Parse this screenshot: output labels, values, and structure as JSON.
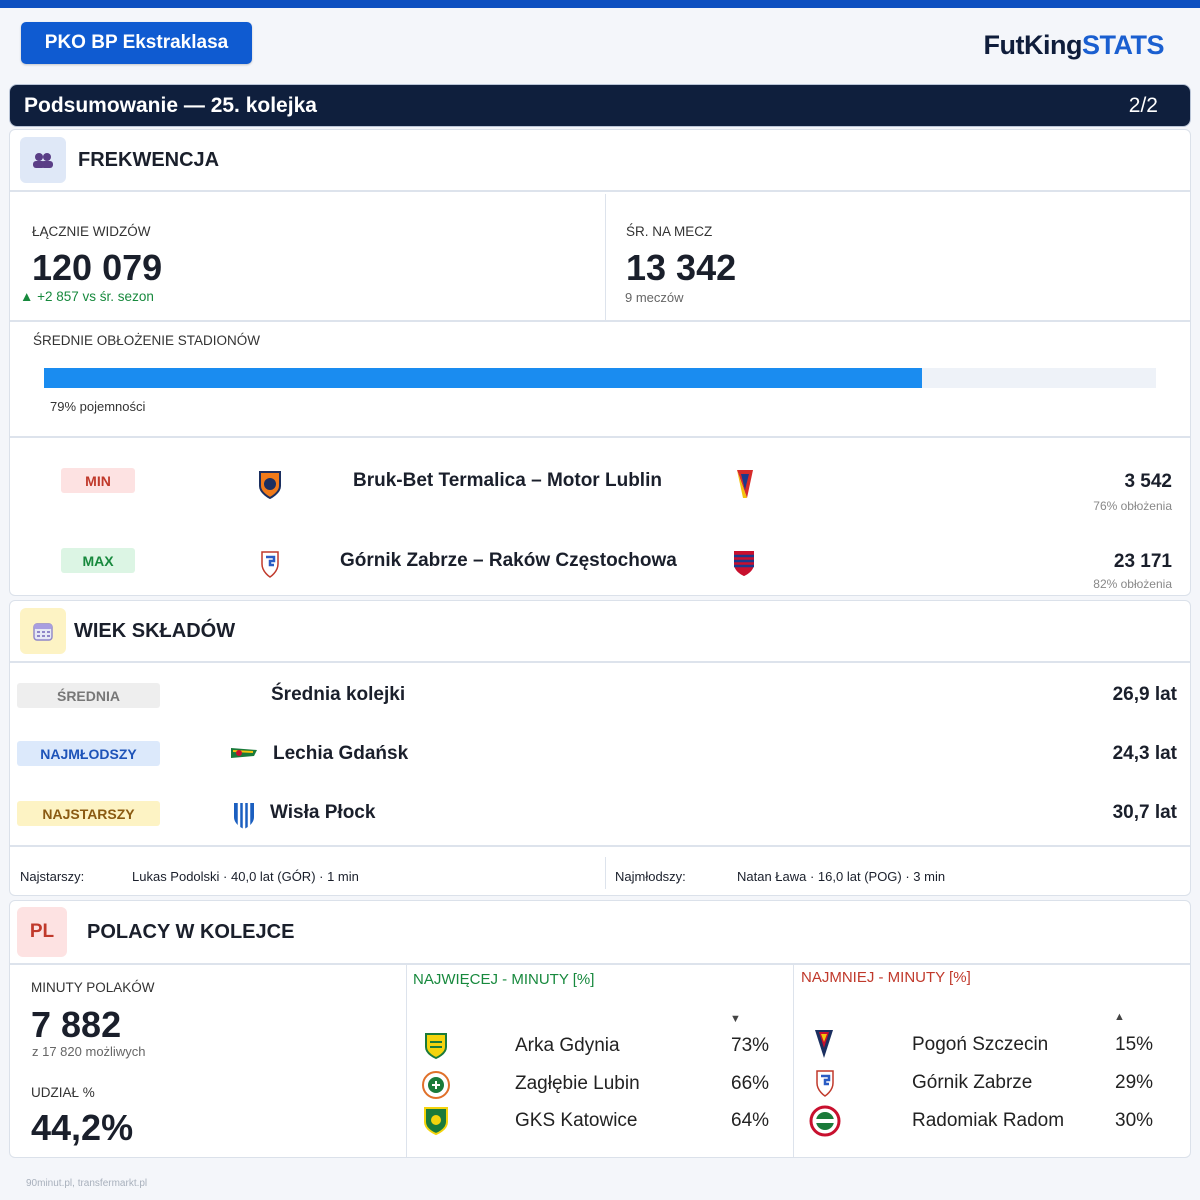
{
  "league": "PKO BP Ekstraklasa",
  "brand": {
    "part1": "FutKing",
    "part2": "STATS"
  },
  "header": {
    "title": "Podsumowanie — 25. kolejka",
    "page": "2/2"
  },
  "frekwencja": {
    "title": "FREKWENCJA",
    "total_label": "ŁĄCZNIE WIDZÓW",
    "total_value": "120 079",
    "total_delta": "+2 857 vs śr. sezon",
    "avg_label": "ŚR. NA MECZ",
    "avg_value": "13 342",
    "avg_sub": "9 meczów",
    "occupancy_label": "ŚREDNIE OBŁOŻENIE STADIONÓW",
    "occupancy_pct": 79,
    "occupancy_text": "79% pojemności",
    "min": {
      "tag": "MIN",
      "match": "Bruk-Bet Termalica – Motor Lublin",
      "value": "3 542",
      "sub": "76% obłożenia"
    },
    "max": {
      "tag": "MAX",
      "match": "Górnik Zabrze – Raków Częstochowa",
      "value": "23 171",
      "sub": "82% obłożenia"
    }
  },
  "wiek": {
    "title": "WIEK SKŁADÓW",
    "rows": [
      {
        "tag": "ŚREDNIA",
        "name": "Średnia kolejki",
        "value": "26,9 lat"
      },
      {
        "tag": "NAJMŁODSZY",
        "name": "Lechia Gdańsk",
        "value": "24,3 lat"
      },
      {
        "tag": "NAJSTARSZY",
        "name": "Wisła Płock",
        "value": "30,7 lat"
      }
    ],
    "oldest_label": "Najstarszy:",
    "oldest_value": "Lukas Podolski · 40,0 lat (GÓR) · 1 min",
    "youngest_label": "Najmłodszy:",
    "youngest_value": "Natan Ława · 16,0 lat (POG) · 3 min"
  },
  "polacy": {
    "icon_text": "PL",
    "title": "POLACY W KOLEJCE",
    "minutes_label": "MINUTY POLAKÓW",
    "minutes_value": "7 882",
    "minutes_sub": "z 17 820 możliwych",
    "share_label": "UDZIAŁ %",
    "share_value": "44,2%",
    "most_title": "NAJWIĘCEJ - MINUTY [%]",
    "most": [
      {
        "team": "Arka Gdynia",
        "pct": "73%"
      },
      {
        "team": "Zagłębie Lubin",
        "pct": "66%"
      },
      {
        "team": "GKS Katowice",
        "pct": "64%"
      }
    ],
    "least_title": "NAJMNIEJ - MINUTY [%]",
    "least": [
      {
        "team": "Pogoń Szczecin",
        "pct": "15%"
      },
      {
        "team": "Górnik Zabrze",
        "pct": "29%"
      },
      {
        "team": "Radomiak Radom",
        "pct": "30%"
      }
    ]
  },
  "footer": "90minut.pl, transfermarkt.pl",
  "colors": {
    "accent": "#0f5bd1",
    "header_bg": "#0f1f3d",
    "bar": "#1a8cf0",
    "green": "#17893d",
    "red": "#c0392b"
  }
}
